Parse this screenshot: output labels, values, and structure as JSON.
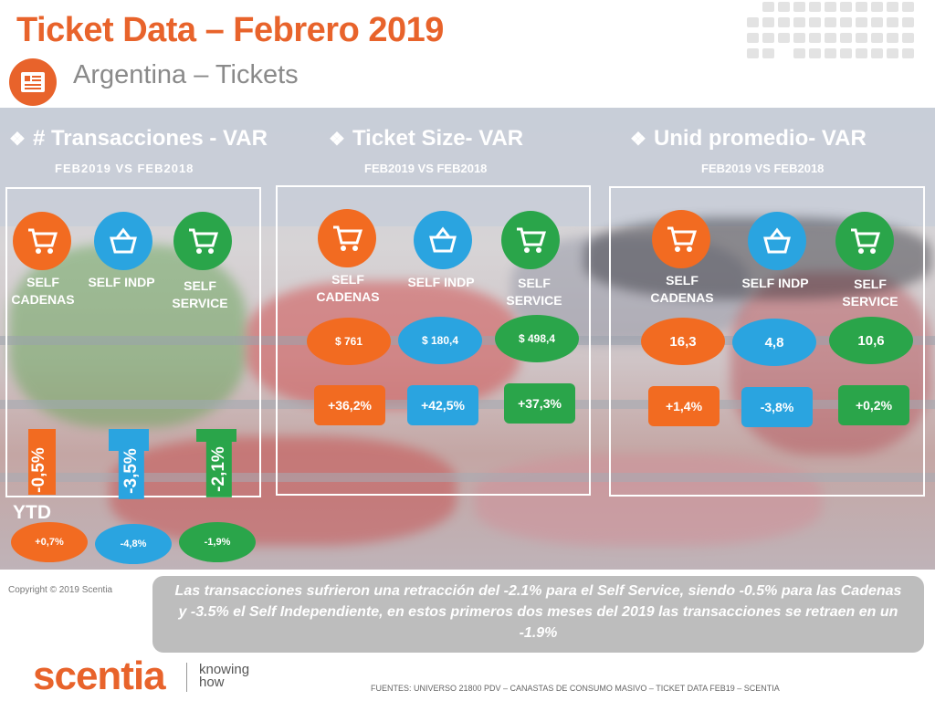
{
  "header": {
    "title": "Ticket Data – Febrero 2019",
    "subtitle": "Argentina – Tickets"
  },
  "colors": {
    "orange": "#f26b21",
    "blue": "#2aa4e0",
    "green": "#2aa54a",
    "title": "#e8632b"
  },
  "icons": {
    "badge": "receipt-icon",
    "chains": "shopping-cart-icon",
    "independent": "basket-icon",
    "self_service": "shopping-cart-icon"
  },
  "panels": [
    {
      "heading": "# Transacciones - VAR",
      "subheading": "FEB2019 VS FEB2018",
      "categories": [
        "SELF CADENAS",
        "SELF INDP",
        "SELF SERVICE"
      ],
      "bars": [
        {
          "label": "-0,5%",
          "value": -0.5
        },
        {
          "label": "-3,5%",
          "value": -3.5
        },
        {
          "label": "-2,1%",
          "value": -2.1
        }
      ]
    },
    {
      "heading": "Ticket Size- VAR",
      "subheading": "FEB2019 VS FEB2018",
      "categories": [
        "SELF CADENAS",
        "SELF INDP",
        "SELF SERVICE"
      ],
      "values": [
        "$ 761",
        "$ 180,4",
        "$ 498,4"
      ],
      "variations": [
        "+36,2%",
        "+42,5%",
        "+37,3%"
      ]
    },
    {
      "heading": "Unid promedio- VAR",
      "subheading": "FEB2019 VS FEB2018",
      "categories": [
        "SELF CADENAS",
        "SELF INDP",
        "SELF SERVICE"
      ],
      "values": [
        "16,3",
        "4,8",
        "10,6"
      ],
      "variations": [
        "+1,4%",
        "-3,8%",
        "+0,2%"
      ]
    }
  ],
  "ytd": {
    "title": "YTD",
    "values": [
      "+0,7%",
      "-4,8%",
      "-1,9%"
    ]
  },
  "copyright": "Copyright © 2019 Scentia",
  "summary": "Las transacciones sufrieron una retracción del -2.1% para el Self Service, siendo -0.5% para las Cadenas y -3.5% el Self Independiente, en estos primeros dos meses del 2019 las transacciones se retraen en un -1.9%",
  "brand": {
    "name": "scentia",
    "tagline_1": "knowing",
    "tagline_2": "how"
  },
  "sources": "FUENTES: UNIVERSO 21800 PDV – CANASTAS DE CONSUMO MASIVO – TICKET DATA FEB19 – SCENTIA"
}
